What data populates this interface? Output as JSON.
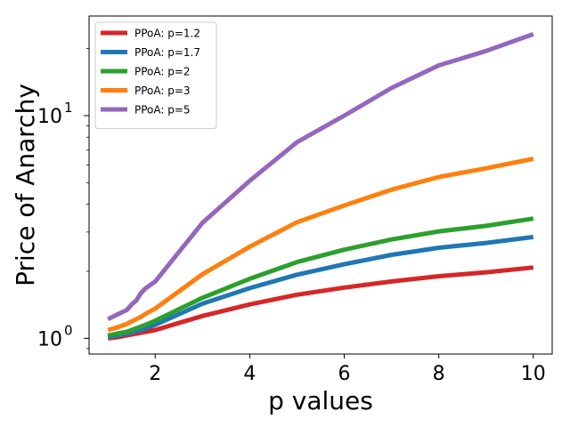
{
  "chart_data": {
    "type": "line",
    "xlabel": "p values",
    "ylabel": "Price of Anarchy",
    "xlim": [
      0.6,
      10.4
    ],
    "ylim": [
      0.85,
      28
    ],
    "yscale": "log",
    "xticks": [
      2,
      4,
      6,
      8,
      10
    ],
    "yticks": [
      {
        "value": 1,
        "label": "10",
        "exp": "0"
      },
      {
        "value": 10,
        "label": "10",
        "exp": "1"
      }
    ],
    "grid": false,
    "legend_position": "top-left",
    "x": [
      1,
      1.2,
      1.4,
      1.5,
      1.6,
      1.7,
      1.8,
      2,
      3,
      4,
      5,
      6,
      7,
      8,
      9,
      10
    ],
    "series": [
      {
        "name": "PPoA: p=1.2",
        "color": "#d62728",
        "values": [
          1.0,
          1.01,
          1.03,
          1.04,
          1.05,
          1.06,
          1.07,
          1.09,
          1.26,
          1.42,
          1.57,
          1.69,
          1.8,
          1.9,
          1.98,
          2.08
        ]
      },
      {
        "name": "PPoA: p=1.7",
        "color": "#1f77b4",
        "values": [
          1.01,
          1.03,
          1.05,
          1.06,
          1.08,
          1.09,
          1.11,
          1.15,
          1.43,
          1.68,
          1.93,
          2.15,
          2.37,
          2.55,
          2.68,
          2.85
        ]
      },
      {
        "name": "PPoA: p=2",
        "color": "#2ca02c",
        "values": [
          1.03,
          1.05,
          1.07,
          1.09,
          1.11,
          1.13,
          1.15,
          1.2,
          1.52,
          1.85,
          2.2,
          2.5,
          2.78,
          3.02,
          3.2,
          3.45
        ]
      },
      {
        "name": "PPoA: p=3",
        "color": "#ff7f0e",
        "values": [
          1.09,
          1.12,
          1.16,
          1.19,
          1.22,
          1.25,
          1.29,
          1.36,
          1.94,
          2.58,
          3.32,
          3.95,
          4.65,
          5.3,
          5.8,
          6.4
        ]
      },
      {
        "name": "PPoA: p=5",
        "color": "#9467bd",
        "values": [
          1.22,
          1.28,
          1.34,
          1.42,
          1.48,
          1.6,
          1.68,
          1.8,
          3.3,
          5.1,
          7.6,
          10.0,
          13.3,
          16.8,
          19.5,
          23.2
        ]
      }
    ]
  }
}
